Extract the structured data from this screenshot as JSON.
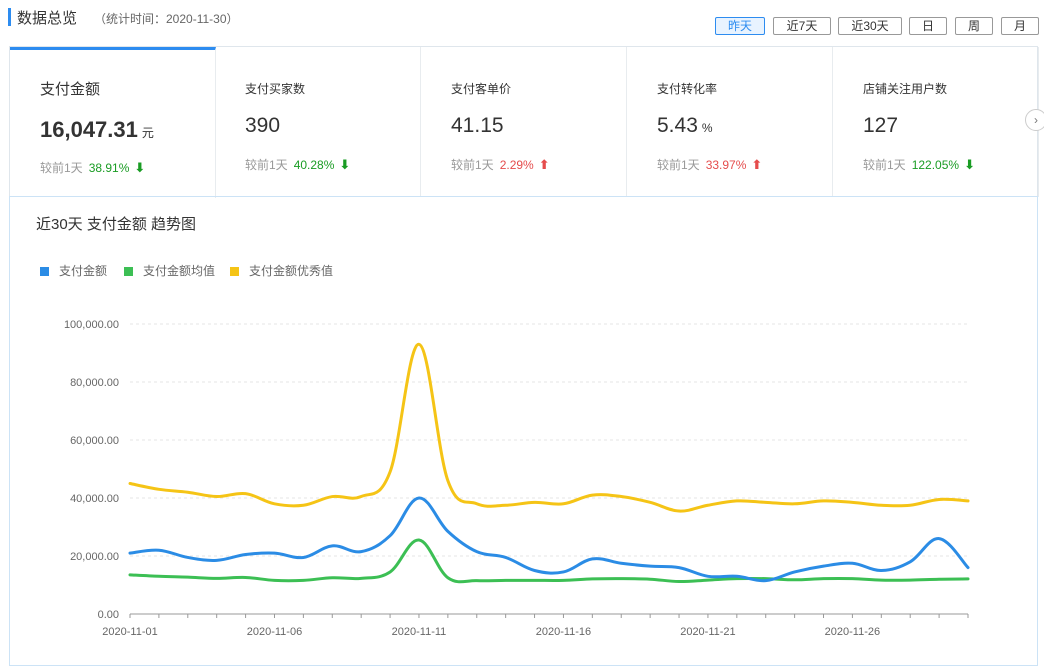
{
  "header": {
    "title": "数据总览",
    "subtitle": "（统计时间：2020-11-30）"
  },
  "periods": [
    {
      "label": "昨天",
      "active": true
    },
    {
      "label": "近7天",
      "active": false
    },
    {
      "label": "近30天",
      "active": false
    },
    {
      "label": "日",
      "active": false
    },
    {
      "label": "周",
      "active": false
    },
    {
      "label": "月",
      "active": false
    }
  ],
  "cards": [
    {
      "label": "支付金额",
      "value": "16,047.31",
      "unit": "元",
      "compare_label": "较前1天",
      "change": "38.91%",
      "direction": "down",
      "active": true
    },
    {
      "label": "支付买家数",
      "value": "390",
      "unit": "",
      "compare_label": "较前1天",
      "change": "40.28%",
      "direction": "down",
      "active": false
    },
    {
      "label": "支付客单价",
      "value": "41.15",
      "unit": "",
      "compare_label": "较前1天",
      "change": "2.29%",
      "direction": "up",
      "active": false
    },
    {
      "label": "支付转化率",
      "value": "5.43",
      "unit": "%",
      "compare_label": "较前1天",
      "change": "33.97%",
      "direction": "up",
      "active": false
    },
    {
      "label": "店铺关注用户数",
      "value": "127",
      "unit": "",
      "compare_label": "较前1天",
      "change": "122.05%",
      "direction": "down",
      "active": false
    }
  ],
  "icons": {
    "down": "arrow-down-icon",
    "up": "arrow-up-icon",
    "next": "chevron-right-icon"
  },
  "colors": {
    "accent": "#2d8cf0",
    "down": "#1a9c24",
    "up": "#e54c4c"
  },
  "chart_data": {
    "type": "line",
    "title": "近30天 支付金额 趋势图",
    "xlabel": "",
    "ylabel": "",
    "ylim": [
      0,
      100000
    ],
    "yticks": [
      "0.00",
      "20,000.00",
      "40,000.00",
      "60,000.00",
      "80,000.00",
      "100,000.00"
    ],
    "x": [
      "2020-11-01",
      "2020-11-02",
      "2020-11-03",
      "2020-11-04",
      "2020-11-05",
      "2020-11-06",
      "2020-11-07",
      "2020-11-08",
      "2020-11-09",
      "2020-11-10",
      "2020-11-11",
      "2020-11-12",
      "2020-11-13",
      "2020-11-14",
      "2020-11-15",
      "2020-11-16",
      "2020-11-17",
      "2020-11-18",
      "2020-11-19",
      "2020-11-20",
      "2020-11-21",
      "2020-11-22",
      "2020-11-23",
      "2020-11-24",
      "2020-11-25",
      "2020-11-26",
      "2020-11-27",
      "2020-11-28",
      "2020-11-29",
      "2020-11-30"
    ],
    "xtick_labels": [
      "2020-11-01",
      "2020-11-06",
      "2020-11-11",
      "2020-11-16",
      "2020-11-21",
      "2020-11-26"
    ],
    "grid": true,
    "legend_position": "top-left",
    "series": [
      {
        "name": "支付金额",
        "color": "#2b8ce5",
        "values": [
          21000,
          22000,
          19500,
          18500,
          20500,
          21000,
          19500,
          23500,
          21500,
          27000,
          40000,
          28500,
          21500,
          19500,
          15000,
          14500,
          19000,
          17500,
          16500,
          16000,
          13000,
          13000,
          11500,
          14500,
          16500,
          17500,
          15000,
          18000,
          26000,
          16000
        ]
      },
      {
        "name": "支付金额均值",
        "color": "#3cbf54",
        "values": [
          13500,
          13000,
          12700,
          12300,
          12600,
          11600,
          11600,
          12500,
          12300,
          14500,
          25500,
          12500,
          11500,
          11600,
          11600,
          11600,
          12100,
          12200,
          12000,
          11200,
          11700,
          12200,
          12200,
          11800,
          12200,
          12200,
          11700,
          11700,
          12000,
          12100
        ]
      },
      {
        "name": "支付金额优秀值",
        "color": "#f5c416",
        "values": [
          45000,
          43000,
          42000,
          40500,
          41500,
          38000,
          37500,
          40500,
          40500,
          49000,
          93000,
          46000,
          38000,
          37500,
          38500,
          38000,
          41000,
          40500,
          38500,
          35500,
          37500,
          39000,
          38500,
          38000,
          39000,
          38500,
          37500,
          37500,
          39500,
          39000
        ]
      }
    ]
  }
}
